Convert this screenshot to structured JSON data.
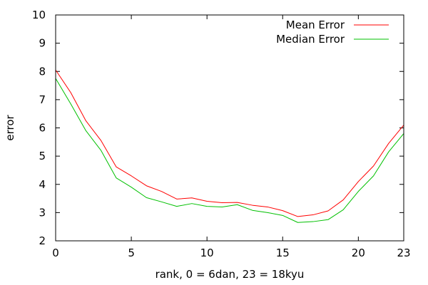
{
  "chart_data": {
    "type": "line",
    "title": "",
    "xlabel": "rank, 0 = 6dan, 23 = 18kyu",
    "ylabel": "error",
    "xlim": [
      0,
      23
    ],
    "ylim": [
      2,
      10
    ],
    "xticks": [
      0,
      5,
      10,
      15,
      20,
      23
    ],
    "yticks": [
      2,
      3,
      4,
      5,
      6,
      7,
      8,
      9,
      10
    ],
    "grid": false,
    "legend_position": "top-right",
    "x": [
      0,
      1,
      2,
      3,
      4,
      5,
      6,
      7,
      8,
      9,
      10,
      11,
      12,
      13,
      14,
      15,
      16,
      17,
      18,
      19,
      20,
      21,
      22,
      23
    ],
    "series": [
      {
        "name": "Mean Error",
        "color": "#ff0000",
        "values": [
          8.05,
          7.25,
          6.25,
          5.55,
          4.62,
          4.3,
          3.95,
          3.75,
          3.48,
          3.52,
          3.4,
          3.35,
          3.36,
          3.26,
          3.2,
          3.07,
          2.86,
          2.92,
          3.06,
          3.45,
          4.1,
          4.65,
          5.45,
          6.1
        ]
      },
      {
        "name": "Median Error",
        "color": "#00c000",
        "values": [
          7.75,
          6.85,
          5.9,
          5.2,
          4.23,
          3.9,
          3.53,
          3.38,
          3.22,
          3.32,
          3.22,
          3.2,
          3.28,
          3.08,
          3.0,
          2.9,
          2.65,
          2.68,
          2.75,
          3.1,
          3.75,
          4.3,
          5.15,
          5.8
        ]
      }
    ]
  }
}
